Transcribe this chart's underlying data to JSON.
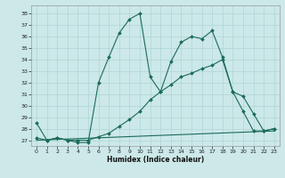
{
  "xlabel": "Humidex (Indice chaleur)",
  "background_color": "#cce8e8",
  "line_color": "#1a6b5a",
  "grid_color": "#b0d4d4",
  "xlim": [
    -0.5,
    23.5
  ],
  "ylim": [
    26.5,
    38.7
  ],
  "yticks": [
    27,
    28,
    29,
    30,
    31,
    32,
    33,
    34,
    35,
    36,
    37,
    38
  ],
  "xticks": [
    0,
    1,
    2,
    3,
    4,
    5,
    6,
    7,
    8,
    9,
    10,
    11,
    12,
    13,
    14,
    15,
    16,
    17,
    18,
    19,
    20,
    21,
    22,
    23
  ],
  "series": [
    {
      "x": [
        0,
        1,
        2,
        3,
        4,
        5,
        6,
        7,
        8,
        9,
        10,
        11,
        12,
        13,
        14,
        15,
        16,
        17,
        18,
        19,
        20,
        21,
        22,
        23
      ],
      "y": [
        28.5,
        27.0,
        27.2,
        27.0,
        26.8,
        26.8,
        32.0,
        34.2,
        36.3,
        37.5,
        38.0,
        32.5,
        31.2,
        33.8,
        35.5,
        36.0,
        35.8,
        36.5,
        34.2,
        31.2,
        30.8,
        29.3,
        27.8,
        28.0
      ],
      "marker": true
    },
    {
      "x": [
        0,
        1,
        2,
        3,
        4,
        5,
        6,
        7,
        8,
        9,
        10,
        11,
        12,
        13,
        14,
        15,
        16,
        17,
        18,
        19,
        20,
        21,
        22,
        23
      ],
      "y": [
        27.2,
        27.0,
        27.2,
        27.0,
        27.0,
        27.0,
        27.3,
        27.6,
        28.2,
        28.8,
        29.5,
        30.5,
        31.2,
        31.8,
        32.5,
        32.8,
        33.2,
        33.5,
        34.0,
        31.2,
        29.5,
        27.8,
        27.8,
        28.0
      ],
      "marker": true
    },
    {
      "x": [
        0,
        23
      ],
      "y": [
        27.0,
        27.8
      ],
      "marker": false
    }
  ]
}
